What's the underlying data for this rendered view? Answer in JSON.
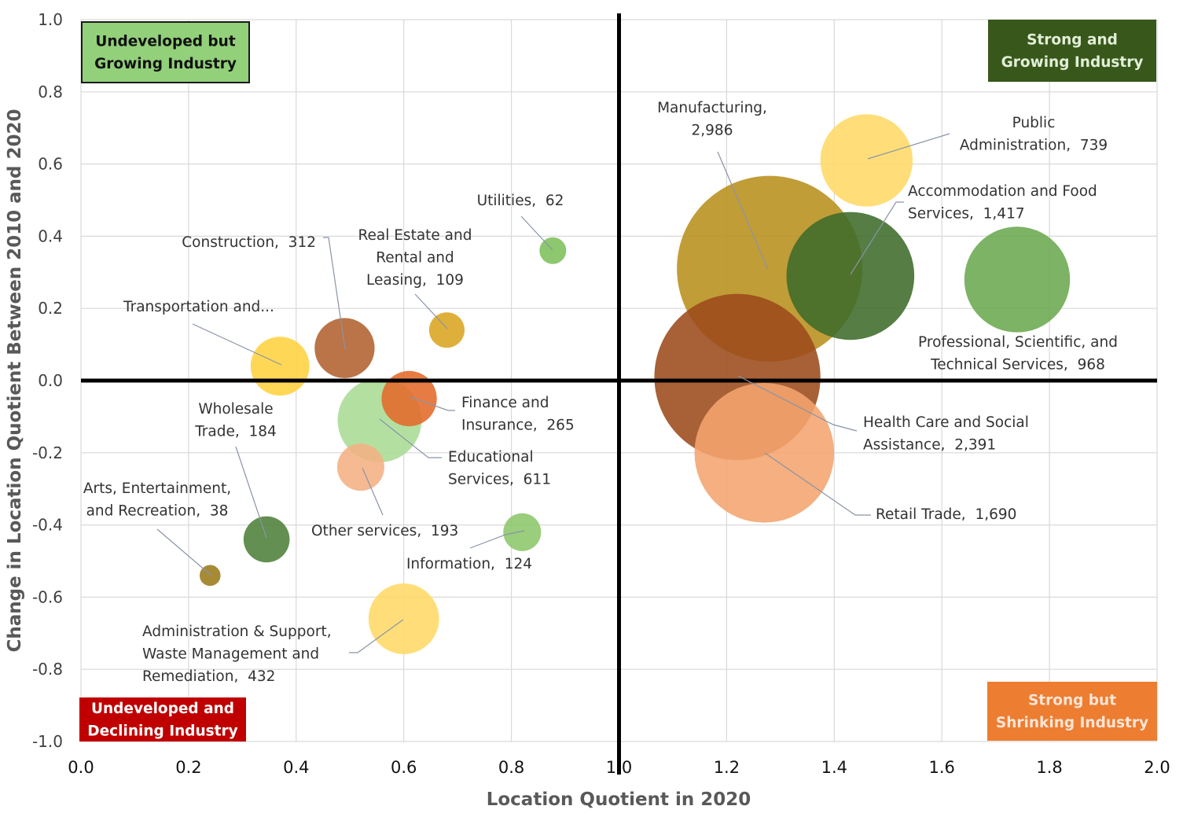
{
  "chart_data": {
    "type": "bubble",
    "title": "",
    "xlabel": "Location Quotient in 2020",
    "ylabel": "Change in Location Quotient Between 2010 and 2020",
    "xlim": [
      0.0,
      2.0
    ],
    "ylim": [
      -1.0,
      1.0
    ],
    "xticks": [
      "0.0",
      "0.2",
      "0.4",
      "0.6",
      "0.8",
      "1.0",
      "1.2",
      "1.4",
      "1.6",
      "1.8",
      "2.0"
    ],
    "yticks": [
      "1.0",
      "0.8",
      "0.6",
      "0.4",
      "0.2",
      "0.0",
      "-0.2",
      "-0.4",
      "-0.6",
      "-0.8",
      "-1.0"
    ],
    "grid": true,
    "reference_lines": {
      "x": 1.0,
      "y": 0.0
    },
    "quadrants": [
      {
        "id": "undeveloped-growing",
        "label": [
          "Undeveloped but",
          "Growing Industry"
        ],
        "position": "top-left",
        "fill": "#92d07a",
        "text_color": "#111111",
        "border": "#1a1a1a"
      },
      {
        "id": "strong-growing",
        "label": [
          "Strong and",
          "Growing Industry"
        ],
        "position": "top-right",
        "fill": "#38571a",
        "text_color": "#e2efd9",
        "border": ""
      },
      {
        "id": "undeveloped-declining",
        "label": [
          "Undeveloped and",
          "Declining Industry"
        ],
        "position": "bottom-left",
        "fill": "#c00000",
        "text_color": "#ffffff",
        "border": ""
      },
      {
        "id": "strong-shrinking",
        "label": [
          "Strong but",
          "Shrinking Industry"
        ],
        "position": "bottom-right",
        "fill": "#ed7d31",
        "text_color": "#fbe5d6",
        "border": ""
      }
    ],
    "series": [
      {
        "name": "Manufacturing",
        "x": 1.28,
        "y": 0.31,
        "size": 2986,
        "size_label": "2,986",
        "color": "#b8901c",
        "label_lines": [
          "Manufacturing,",
          "2,986"
        ]
      },
      {
        "name": "Health Care and Social Assistance",
        "x": 1.22,
        "y": 0.01,
        "size": 2391,
        "size_label": "2,391",
        "color": "#9c4a1a",
        "label_lines": [
          "Health Care and Social",
          "Assistance,  2,391"
        ]
      },
      {
        "name": "Retail Trade",
        "x": 1.27,
        "y": -0.2,
        "size": 1690,
        "size_label": "1,690",
        "color": "#f4a46e",
        "label_lines": [
          "Retail Trade,  1,690"
        ]
      },
      {
        "name": "Accommodation and Food Services",
        "x": 1.43,
        "y": 0.29,
        "size": 1417,
        "size_label": "1,417",
        "color": "#3d6b2a",
        "label_lines": [
          "Accommodation and Food",
          "Services,  1,417"
        ]
      },
      {
        "name": "Professional, Scientific, and Technical Services",
        "x": 1.74,
        "y": 0.28,
        "size": 968,
        "size_label": "968",
        "color": "#6aa84f",
        "label_lines": [
          "Professional, Scientific, and",
          "Technical Services,  968"
        ]
      },
      {
        "name": "Public Administration",
        "x": 1.46,
        "y": 0.61,
        "size": 739,
        "size_label": "739",
        "color": "#ffd966",
        "label_lines": [
          "Public",
          "Administration,  739"
        ]
      },
      {
        "name": "Educational Services",
        "x": 0.555,
        "y": -0.11,
        "size": 611,
        "size_label": "611",
        "color": "#a9dc94",
        "label_lines": [
          "Educational",
          "Services,  611"
        ]
      },
      {
        "name": "Administration & Support, Waste Management and Remediation",
        "x": 0.6,
        "y": -0.66,
        "size": 432,
        "size_label": "432",
        "color": "#ffd966",
        "label_lines": [
          "Administration & Support,",
          "Waste Management and",
          "Remediation,  432"
        ]
      },
      {
        "name": "Construction",
        "x": 0.49,
        "y": 0.09,
        "size": 312,
        "size_label": "312",
        "color": "#b0612e",
        "label_lines": [
          "Construction,  312"
        ]
      },
      {
        "name": "Transportation and...",
        "x": 0.37,
        "y": 0.04,
        "size": 300,
        "size_label": "",
        "color": "#ffd23f",
        "label_lines": [
          "Transportation and..."
        ]
      },
      {
        "name": "Finance and Insurance",
        "x": 0.61,
        "y": -0.05,
        "size": 265,
        "size_label": "265",
        "color": "#e3692a",
        "label_lines": [
          "Finance and",
          "Insurance,  265"
        ]
      },
      {
        "name": "Other services",
        "x": 0.52,
        "y": -0.24,
        "size": 193,
        "size_label": "193",
        "color": "#f4b183",
        "label_lines": [
          "Other services,  193"
        ]
      },
      {
        "name": "Wholesale Trade",
        "x": 0.345,
        "y": -0.44,
        "size": 184,
        "size_label": "184",
        "color": "#4f7f3a",
        "label_lines": [
          "Wholesale",
          "Trade,  184"
        ]
      },
      {
        "name": "Information",
        "x": 0.82,
        "y": -0.42,
        "size": 124,
        "size_label": "124",
        "color": "#8cc66a",
        "label_lines": [
          "Information,  124"
        ]
      },
      {
        "name": "Real Estate and Rental and Leasing",
        "x": 0.68,
        "y": 0.14,
        "size": 109,
        "size_label": "109",
        "color": "#d9a520",
        "label_lines": [
          "Real Estate and",
          "Rental and",
          "Leasing,  109"
        ]
      },
      {
        "name": "Utilities",
        "x": 0.877,
        "y": 0.36,
        "size": 62,
        "size_label": "62",
        "color": "#7dbf5a",
        "label_lines": [
          "Utilities,  62"
        ]
      },
      {
        "name": "Arts, Entertainment, and Recreation",
        "x": 0.24,
        "y": -0.54,
        "size": 38,
        "size_label": "38",
        "color": "#9a7a1a",
        "label_lines": [
          "Arts, Entertainment,",
          "and Recreation,  38"
        ]
      }
    ]
  }
}
